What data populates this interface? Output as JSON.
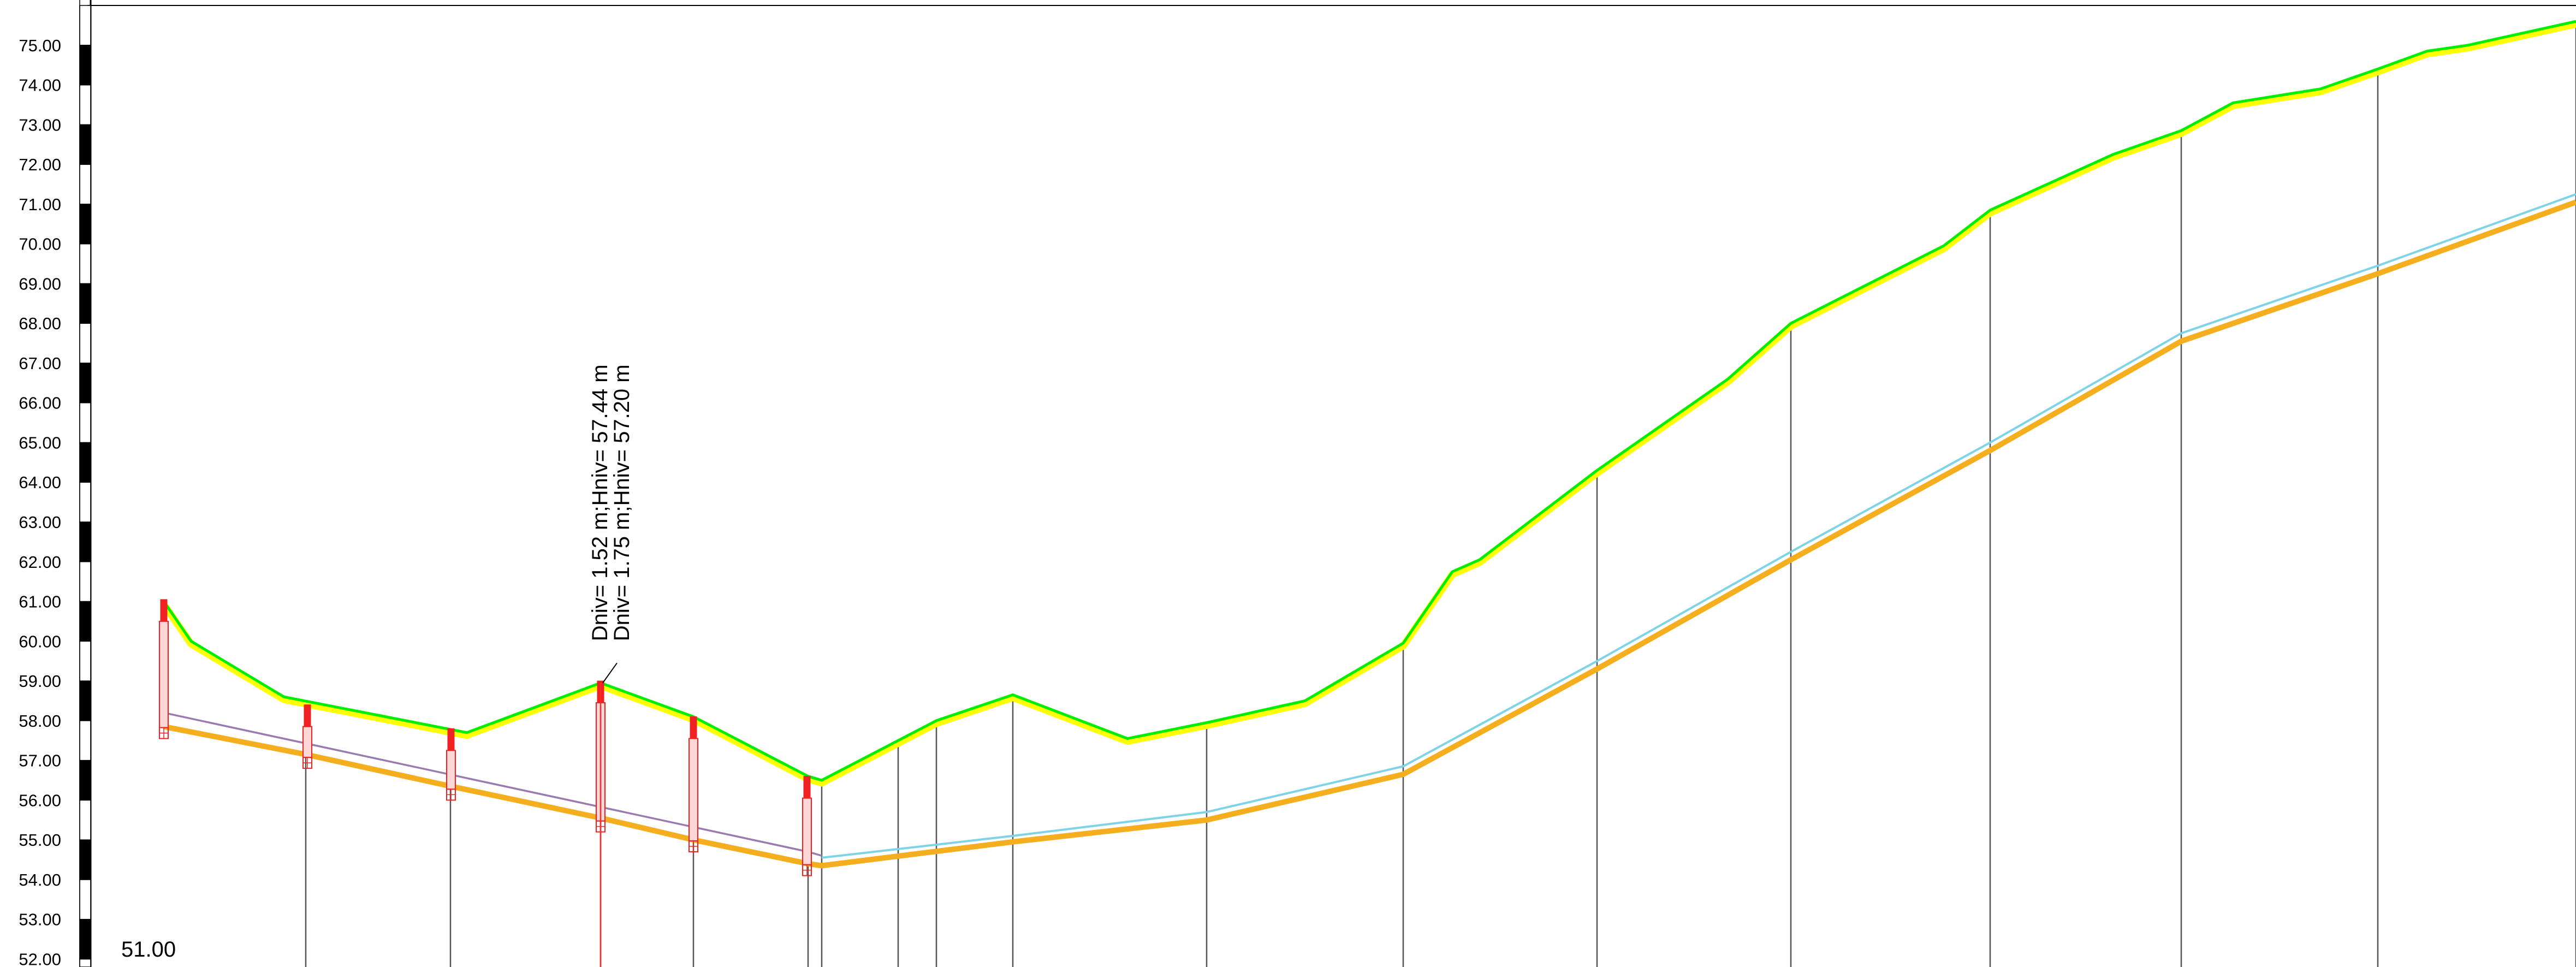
{
  "chart_data": {
    "type": "line",
    "datum_label": "51.00",
    "ylim": [
      51.8,
      76.0
    ],
    "x_range": [
      0,
      4718
    ],
    "y_ticks": [
      "52.00",
      "53.00",
      "54.00",
      "55.00",
      "56.00",
      "57.00",
      "58.00",
      "59.00",
      "60.00",
      "61.00",
      "62.00",
      "63.00",
      "64.00",
      "65.00",
      "66.00",
      "67.00",
      "68.00",
      "69.00",
      "70.00",
      "71.00",
      "72.00",
      "73.00",
      "74.00",
      "75.00"
    ],
    "colors": {
      "ground_fill": "#ffff00",
      "ground_line": "#00ee00",
      "pipe_line": "#f5ae1e",
      "pipe_upper_line": "#7ed4e6",
      "pipe_old_line": "#9a7ab0",
      "chainage_line": "#555555",
      "manhole_color": "#ee2222",
      "scale_bar": "#000000"
    },
    "series": [
      {
        "id": "ground",
        "points": [
          [
            300,
            61.0
          ],
          [
            350,
            60.0
          ],
          [
            520,
            58.6
          ],
          [
            855,
            57.7
          ],
          [
            1100,
            58.95
          ],
          [
            1270,
            58.1
          ],
          [
            1480,
            56.6
          ],
          [
            1505,
            56.5
          ],
          [
            1645,
            57.5
          ],
          [
            1715,
            58.0
          ],
          [
            1855,
            58.65
          ],
          [
            2065,
            57.55
          ],
          [
            2210,
            57.95
          ],
          [
            2390,
            58.5
          ],
          [
            2570,
            59.95
          ],
          [
            2660,
            61.75
          ],
          [
            2710,
            62.05
          ],
          [
            2925,
            64.3
          ],
          [
            3165,
            66.6
          ],
          [
            3280,
            68.0
          ],
          [
            3560,
            69.95
          ],
          [
            3645,
            70.85
          ],
          [
            3870,
            72.25
          ],
          [
            3995,
            72.85
          ],
          [
            4090,
            73.55
          ],
          [
            4250,
            73.9
          ],
          [
            4355,
            74.4
          ],
          [
            4445,
            74.85
          ],
          [
            4520,
            75.0
          ],
          [
            4718,
            75.6
          ]
        ]
      },
      {
        "id": "pipe",
        "points": [
          [
            300,
            57.85
          ],
          [
            560,
            57.15
          ],
          [
            825,
            56.35
          ],
          [
            1100,
            55.55
          ],
          [
            1270,
            55.0
          ],
          [
            1480,
            54.4
          ],
          [
            1505,
            54.35
          ],
          [
            1855,
            54.95
          ],
          [
            2210,
            55.5
          ],
          [
            2570,
            56.65
          ],
          [
            2925,
            59.3
          ],
          [
            3280,
            62.05
          ],
          [
            3645,
            64.8
          ],
          [
            3995,
            67.55
          ],
          [
            4355,
            69.25
          ],
          [
            4718,
            71.05
          ]
        ]
      },
      {
        "id": "pipe-upper",
        "points": [
          [
            1505,
            54.55
          ],
          [
            1855,
            55.1
          ],
          [
            2210,
            55.7
          ],
          [
            2570,
            56.85
          ],
          [
            2925,
            59.5
          ],
          [
            3280,
            62.25
          ],
          [
            3645,
            65.0
          ],
          [
            3995,
            67.75
          ],
          [
            4355,
            69.45
          ],
          [
            4718,
            71.25
          ]
        ]
      },
      {
        "id": "pipe-old",
        "points": [
          [
            300,
            58.2
          ],
          [
            1480,
            54.7
          ],
          [
            1505,
            54.6
          ]
        ]
      }
    ],
    "chainage_x": [
      560,
      825,
      1100,
      1270,
      1480,
      1505,
      1645,
      1715,
      1855,
      2210,
      2570,
      2925,
      3280,
      3645,
      3995,
      4355,
      4718
    ],
    "manholes": [
      {
        "x": 300,
        "top": 61.05,
        "bottom": 57.55
      },
      {
        "x": 563,
        "top": 58.4,
        "bottom": 56.8
      },
      {
        "x": 826,
        "top": 57.8,
        "bottom": 56.0
      },
      {
        "x": 1100,
        "top": 59.0,
        "bottom": 55.2
      },
      {
        "x": 1270,
        "top": 58.1,
        "bottom": 54.7
      },
      {
        "x": 1478,
        "top": 56.6,
        "bottom": 54.1
      }
    ],
    "annotations": [
      {
        "x": 1100,
        "text_1": "Dniv= 1.52 m;Hniv= 57.44 m",
        "text_2": "Dniv= 1.75 m;Hniv= 57.20 m"
      }
    ]
  }
}
